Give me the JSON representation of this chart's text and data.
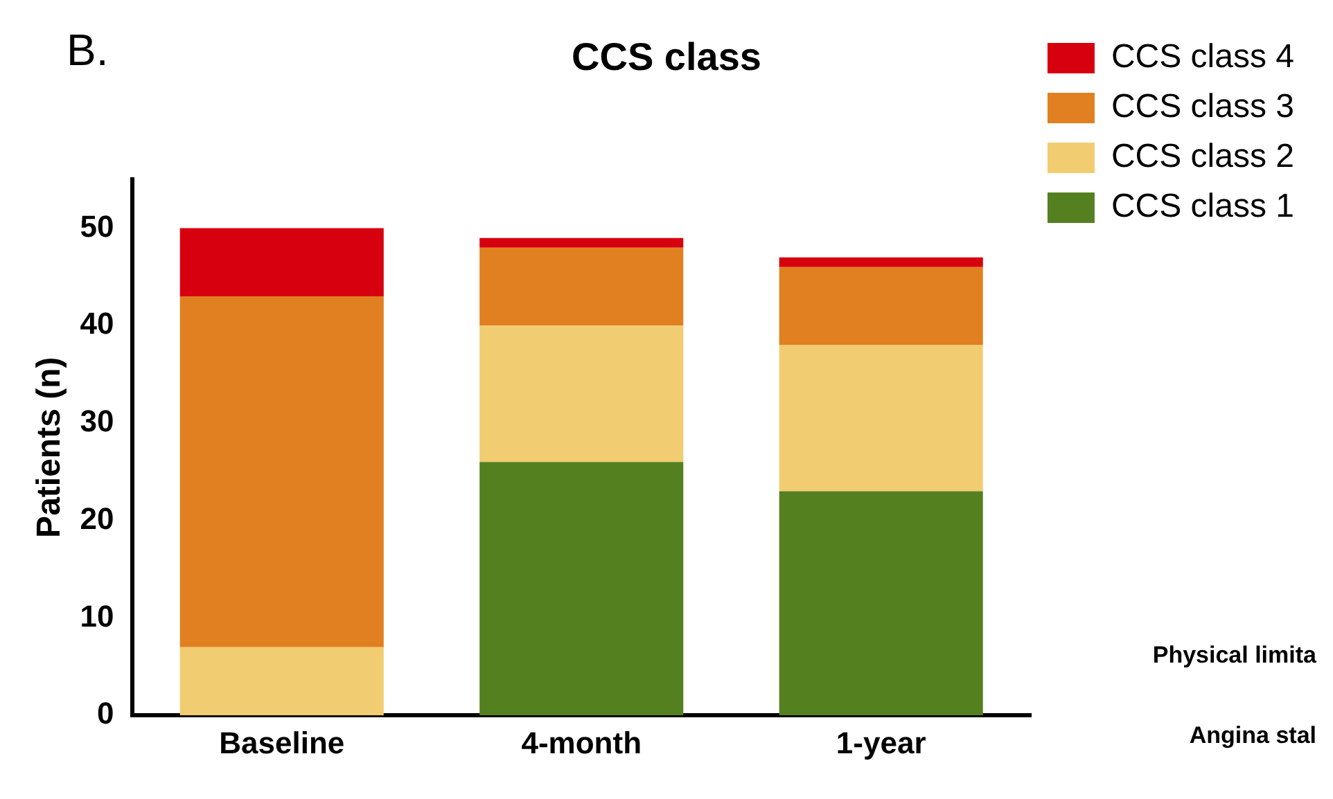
{
  "chart_data": {
    "type": "bar",
    "title": "CCS class",
    "ylabel": "Patients (n)",
    "categories": [
      "Baseline",
      "4-month",
      "1-year"
    ],
    "stacked": true,
    "series": [
      {
        "name": "CCS class 1",
        "color": "#55801f",
        "values": [
          0,
          26,
          23
        ]
      },
      {
        "name": "CCS class 2",
        "color": "#f2cc70",
        "values": [
          7,
          14,
          15
        ]
      },
      {
        "name": "CCS class 3",
        "color": "#e08020",
        "values": [
          36,
          8,
          8
        ]
      },
      {
        "name": "CCS class 4",
        "color": "#d7000f",
        "values": [
          7,
          1,
          1
        ]
      }
    ],
    "ylim": [
      0,
      55
    ],
    "yticks": [
      0,
      10,
      20,
      30,
      40,
      50
    ],
    "grid": false,
    "legend": "top right",
    "annotations": [
      "B.",
      "Physical limita",
      "Angina stal"
    ]
  }
}
